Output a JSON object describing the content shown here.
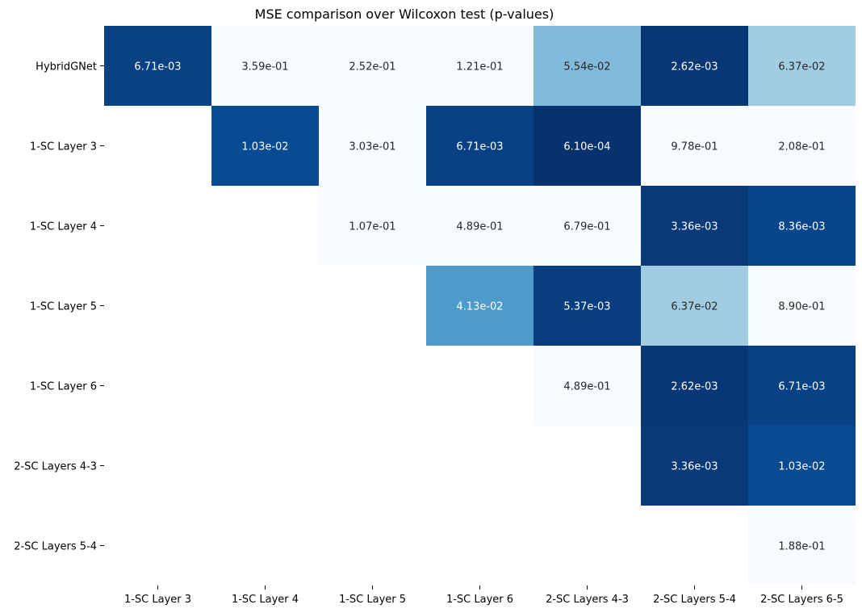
{
  "chart_data": {
    "type": "heatmap",
    "title": "MSE comparison over Wilcoxon test (p-values)",
    "xlabel": "",
    "ylabel": "",
    "colormap": "Blues_r",
    "x_categories": [
      "1-SC Layer 3",
      "1-SC Layer 4",
      "1-SC Layer 5",
      "1-SC Layer 6",
      "2-SC Layers 4-3",
      "2-SC Layers 5-4",
      "2-SC Layers 6-5"
    ],
    "y_categories": [
      "HybridGNet",
      "1-SC Layer 3",
      "1-SC Layer 4",
      "1-SC Layer 5",
      "1-SC Layer 6",
      "2-SC Layers 4-3",
      "2-SC Layers 5-4"
    ],
    "values": [
      [
        0.00671,
        0.359,
        0.252,
        0.121,
        0.0554,
        0.00262,
        0.0637
      ],
      [
        null,
        0.0103,
        0.303,
        0.00671,
        0.00061,
        0.978,
        0.208
      ],
      [
        null,
        null,
        0.107,
        0.489,
        0.679,
        0.00336,
        0.00836
      ],
      [
        null,
        null,
        null,
        0.0413,
        0.00537,
        0.0637,
        0.89
      ],
      [
        null,
        null,
        null,
        null,
        0.489,
        0.00262,
        0.00671
      ],
      [
        null,
        null,
        null,
        null,
        null,
        0.00336,
        0.0103
      ],
      [
        null,
        null,
        null,
        null,
        null,
        null,
        0.188
      ]
    ],
    "labels": [
      [
        "6.71e-03",
        "3.59e-01",
        "2.52e-01",
        "1.21e-01",
        "5.54e-02",
        "2.62e-03",
        "6.37e-02"
      ],
      [
        null,
        "1.03e-02",
        "3.03e-01",
        "6.71e-03",
        "6.10e-04",
        "9.78e-01",
        "2.08e-01"
      ],
      [
        null,
        null,
        "1.07e-01",
        "4.89e-01",
        "6.79e-01",
        "3.36e-03",
        "8.36e-03"
      ],
      [
        null,
        null,
        null,
        "4.13e-02",
        "5.37e-03",
        "6.37e-02",
        "8.90e-01"
      ],
      [
        null,
        null,
        null,
        null,
        "4.89e-01",
        "2.62e-03",
        "6.71e-03"
      ],
      [
        null,
        null,
        null,
        null,
        null,
        "3.36e-03",
        "1.03e-02"
      ],
      [
        null,
        null,
        null,
        null,
        null,
        null,
        "1.88e-01"
      ]
    ],
    "color_range": [
      0,
      0.1
    ],
    "colorbar": false,
    "grid": false
  }
}
